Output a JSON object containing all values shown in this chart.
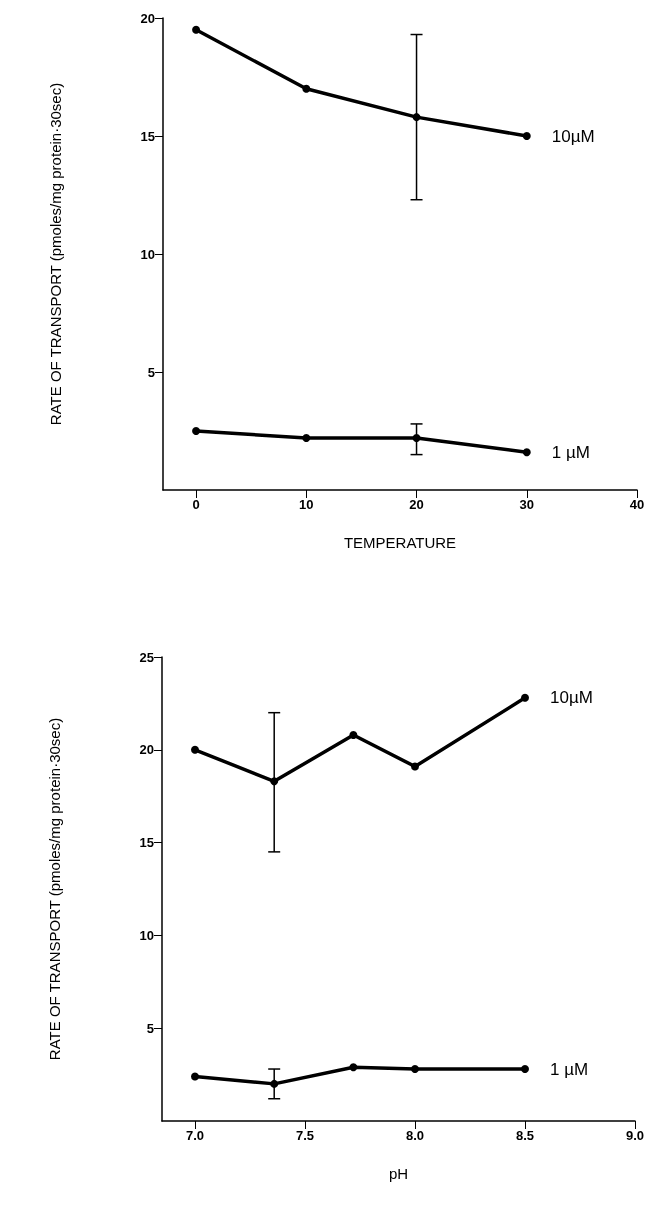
{
  "chart_data": [
    {
      "type": "line",
      "xlabel": "TEMPERATURE",
      "ylabel": "RATE OF TRANSPORT (pmoles/mg protein·30sec)",
      "x": [
        0,
        10,
        20,
        30
      ],
      "series": [
        {
          "name": "10µM",
          "color": "#000000",
          "values": [
            19.5,
            17.0,
            15.8,
            15.0
          ],
          "errors": [
            null,
            null,
            [
              12.3,
              19.3
            ],
            null
          ]
        },
        {
          "name": "1 µM",
          "color": "#000000",
          "values": [
            2.5,
            2.2,
            2.2,
            1.6
          ],
          "errors": [
            null,
            null,
            [
              1.5,
              2.8
            ],
            null
          ]
        }
      ],
      "xlim": [
        -3,
        40
      ],
      "xticks": [
        0,
        10,
        20,
        30,
        40
      ],
      "ylim": [
        0,
        20
      ],
      "yticks": [
        5,
        10,
        15,
        20
      ],
      "grid": false,
      "legend": false,
      "marker": "circle",
      "line_style": "solid"
    },
    {
      "type": "line",
      "xlabel": "pH",
      "ylabel": "RATE OF TRANSPORT (pmoles/mg protein·30sec)",
      "x": [
        7.0,
        7.36,
        7.72,
        8.0,
        8.5
      ],
      "series": [
        {
          "name": "10µM",
          "color": "#000000",
          "values": [
            20.0,
            18.3,
            20.8,
            19.1,
            22.8
          ],
          "errors": [
            null,
            [
              14.5,
              22.0
            ],
            null,
            null,
            null
          ]
        },
        {
          "name": "1 µM",
          "color": "#000000",
          "values": [
            2.4,
            2.0,
            2.9,
            2.8,
            2.8
          ],
          "errors": [
            null,
            [
              1.2,
              2.8
            ],
            null,
            null,
            null
          ]
        }
      ],
      "xlim": [
        6.85,
        9.0
      ],
      "xticks": [
        {
          "value": 7.0,
          "label": "7.0"
        },
        {
          "value": 7.5,
          "label": "7.5"
        },
        {
          "value": 8.0,
          "label": "8.0"
        },
        {
          "value": 8.5,
          "label": "8.5"
        },
        {
          "value": 9.0,
          "label": "9.0"
        }
      ],
      "ylim": [
        0,
        25
      ],
      "yticks": [
        5,
        10,
        15,
        20,
        25
      ],
      "grid": false,
      "legend": false,
      "marker": "circle",
      "line_style": "solid"
    }
  ]
}
